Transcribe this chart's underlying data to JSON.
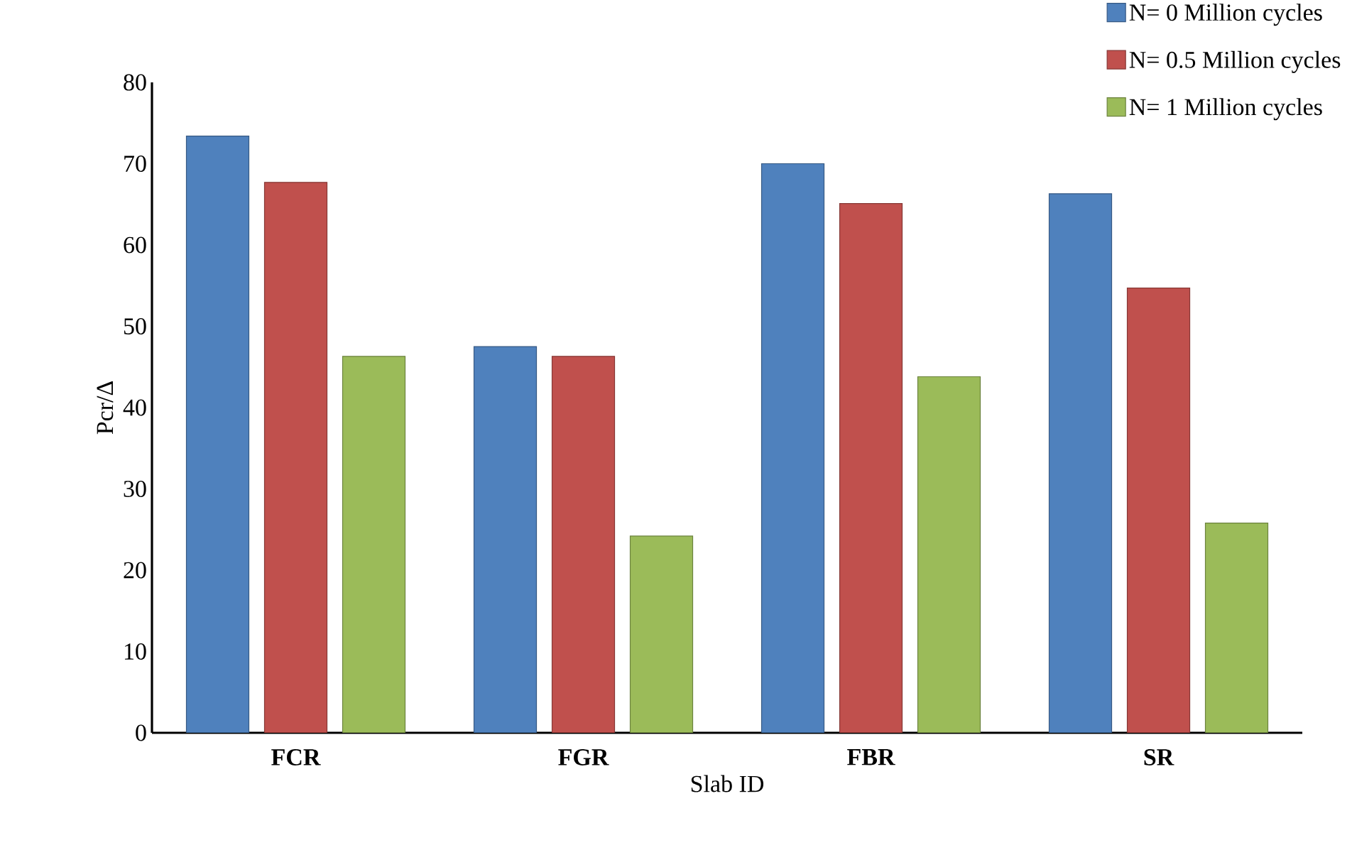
{
  "chart_data": {
    "type": "bar",
    "xlabel": "Slab ID",
    "ylabel": "Pcr/Δ",
    "categories": [
      "FCR",
      "FGR",
      "FBR",
      "SR"
    ],
    "series": [
      {
        "name": "N= 0 Million cycles",
        "color": "#4f81bd",
        "values": [
          73.4,
          47.5,
          70.0,
          66.3
        ]
      },
      {
        "name": "N= 0.5 Million cycles",
        "color": "#c0504d",
        "values": [
          67.7,
          46.3,
          65.1,
          54.7
        ]
      },
      {
        "name": "N= 1 Million cycles",
        "color": "#9bbb59",
        "values": [
          46.3,
          24.2,
          43.8,
          25.8
        ]
      }
    ],
    "ylim": [
      0,
      80
    ],
    "yticks": [
      0,
      10,
      20,
      30,
      40,
      50,
      60,
      70,
      80
    ],
    "grid": false,
    "legend": "top right"
  }
}
